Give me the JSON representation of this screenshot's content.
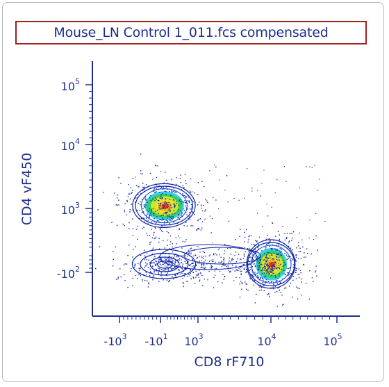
{
  "chart_data": {
    "type": "scatter",
    "subtype": "flow-cytometry-density-contour",
    "title": "Mouse_LN Control 1_011.fcs compensated",
    "xlabel": "CD8 rF710",
    "ylabel": "CD4 vF450",
    "x_scale": "biexponential",
    "y_scale": "biexponential",
    "x_ticks": [
      {
        "value": -1000,
        "base": "-10",
        "exp": "3"
      },
      {
        "value": -10,
        "base": "-10",
        "exp": "1"
      },
      {
        "value": 1000,
        "base": "10",
        "exp": "3"
      },
      {
        "value": 10000,
        "base": "10",
        "exp": "4"
      },
      {
        "value": 100000,
        "base": "10",
        "exp": "5"
      }
    ],
    "y_ticks": [
      {
        "value": 100000,
        "base": "10",
        "exp": "5"
      },
      {
        "value": 10000,
        "base": "10",
        "exp": "4"
      },
      {
        "value": 1000,
        "base": "10",
        "exp": "3"
      },
      {
        "value": -100,
        "base": "-10",
        "exp": "2"
      }
    ],
    "populations": [
      {
        "x": 0,
        "y": 1400,
        "spread_x": 0.55,
        "spread_y": 0.45,
        "density": "high"
      },
      {
        "x": 10000,
        "y": -60,
        "spread_x": 0.45,
        "spread_y": 0.5,
        "density": "high"
      },
      {
        "x": 0,
        "y": -60,
        "spread_x": 0.55,
        "spread_y": 0.3,
        "density": "low"
      }
    ],
    "grid": false,
    "legend": "none",
    "colors": {
      "axis": "#1d2e8f",
      "title_border": "#9b2020",
      "density_scale": [
        "#0a1fa8",
        "#1a5fe0",
        "#19c8e6",
        "#33d14a",
        "#e8e824",
        "#f5a020",
        "#e82020"
      ]
    }
  }
}
